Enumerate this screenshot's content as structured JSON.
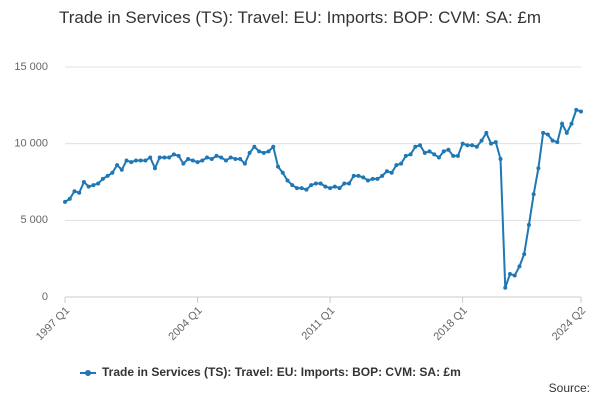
{
  "chart_data": {
    "type": "line",
    "title": "Trade in Services (TS): Travel: EU: Imports: BOP: CVM: SA: £m",
    "source": "Source:",
    "categories": [
      "1997 Q1",
      null,
      null,
      null,
      null,
      null,
      null,
      null,
      null,
      null,
      null,
      null,
      null,
      null,
      null,
      null,
      null,
      null,
      null,
      null,
      null,
      null,
      null,
      null,
      null,
      null,
      null,
      null,
      "2004 Q1",
      null,
      null,
      null,
      null,
      null,
      null,
      null,
      null,
      null,
      null,
      null,
      null,
      null,
      null,
      null,
      null,
      null,
      null,
      null,
      null,
      null,
      null,
      null,
      null,
      null,
      null,
      null,
      "2011 Q1",
      null,
      null,
      null,
      null,
      null,
      null,
      null,
      null,
      null,
      null,
      null,
      null,
      null,
      null,
      null,
      null,
      null,
      null,
      null,
      null,
      null,
      null,
      null,
      null,
      null,
      null,
      null,
      "2018 Q1",
      null,
      null,
      null,
      null,
      null,
      null,
      null,
      null,
      null,
      null,
      null,
      null,
      null,
      null,
      null,
      null,
      null,
      null,
      null,
      null,
      null,
      null,
      null,
      null,
      "2024 Q2"
    ],
    "series": [
      {
        "name": "Trade in Services (TS): Travel: EU: Imports: BOP: CVM: SA: £m",
        "color": "#1f78b4",
        "values": [
          6200,
          6400,
          6900,
          6800,
          7500,
          7200,
          7300,
          7400,
          7700,
          7900,
          8100,
          8600,
          8300,
          8900,
          8800,
          8900,
          8900,
          8900,
          9100,
          8400,
          9100,
          9100,
          9100,
          9300,
          9200,
          8700,
          9000,
          8900,
          8800,
          8900,
          9100,
          9000,
          9200,
          9100,
          8900,
          9100,
          9000,
          9000,
          8700,
          9400,
          9800,
          9500,
          9400,
          9500,
          9800,
          8500,
          8100,
          7600,
          7300,
          7100,
          7100,
          7000,
          7300,
          7400,
          7400,
          7200,
          7100,
          7200,
          7100,
          7400,
          7400,
          7900,
          7900,
          7800,
          7600,
          7700,
          7700,
          7900,
          8200,
          8100,
          8600,
          8700,
          9200,
          9300,
          9800,
          9900,
          9400,
          9500,
          9300,
          9100,
          9500,
          9600,
          9200,
          9200,
          10000,
          9900,
          9900,
          9800,
          10200,
          10700,
          10000,
          10100,
          9000,
          600,
          1500,
          1400,
          2000,
          2800,
          4700,
          6700,
          8400,
          10700,
          10600,
          10200,
          10100,
          11300,
          10700,
          11300,
          12200,
          12100
        ]
      }
    ],
    "ylim": [
      0,
      15000
    ],
    "yticks": [
      0,
      {
        "value": 5000,
        "label": "5 000"
      },
      {
        "value": 10000,
        "label": "10 000"
      },
      {
        "value": 15000,
        "label": "15 000"
      }
    ],
    "grid": true
  }
}
